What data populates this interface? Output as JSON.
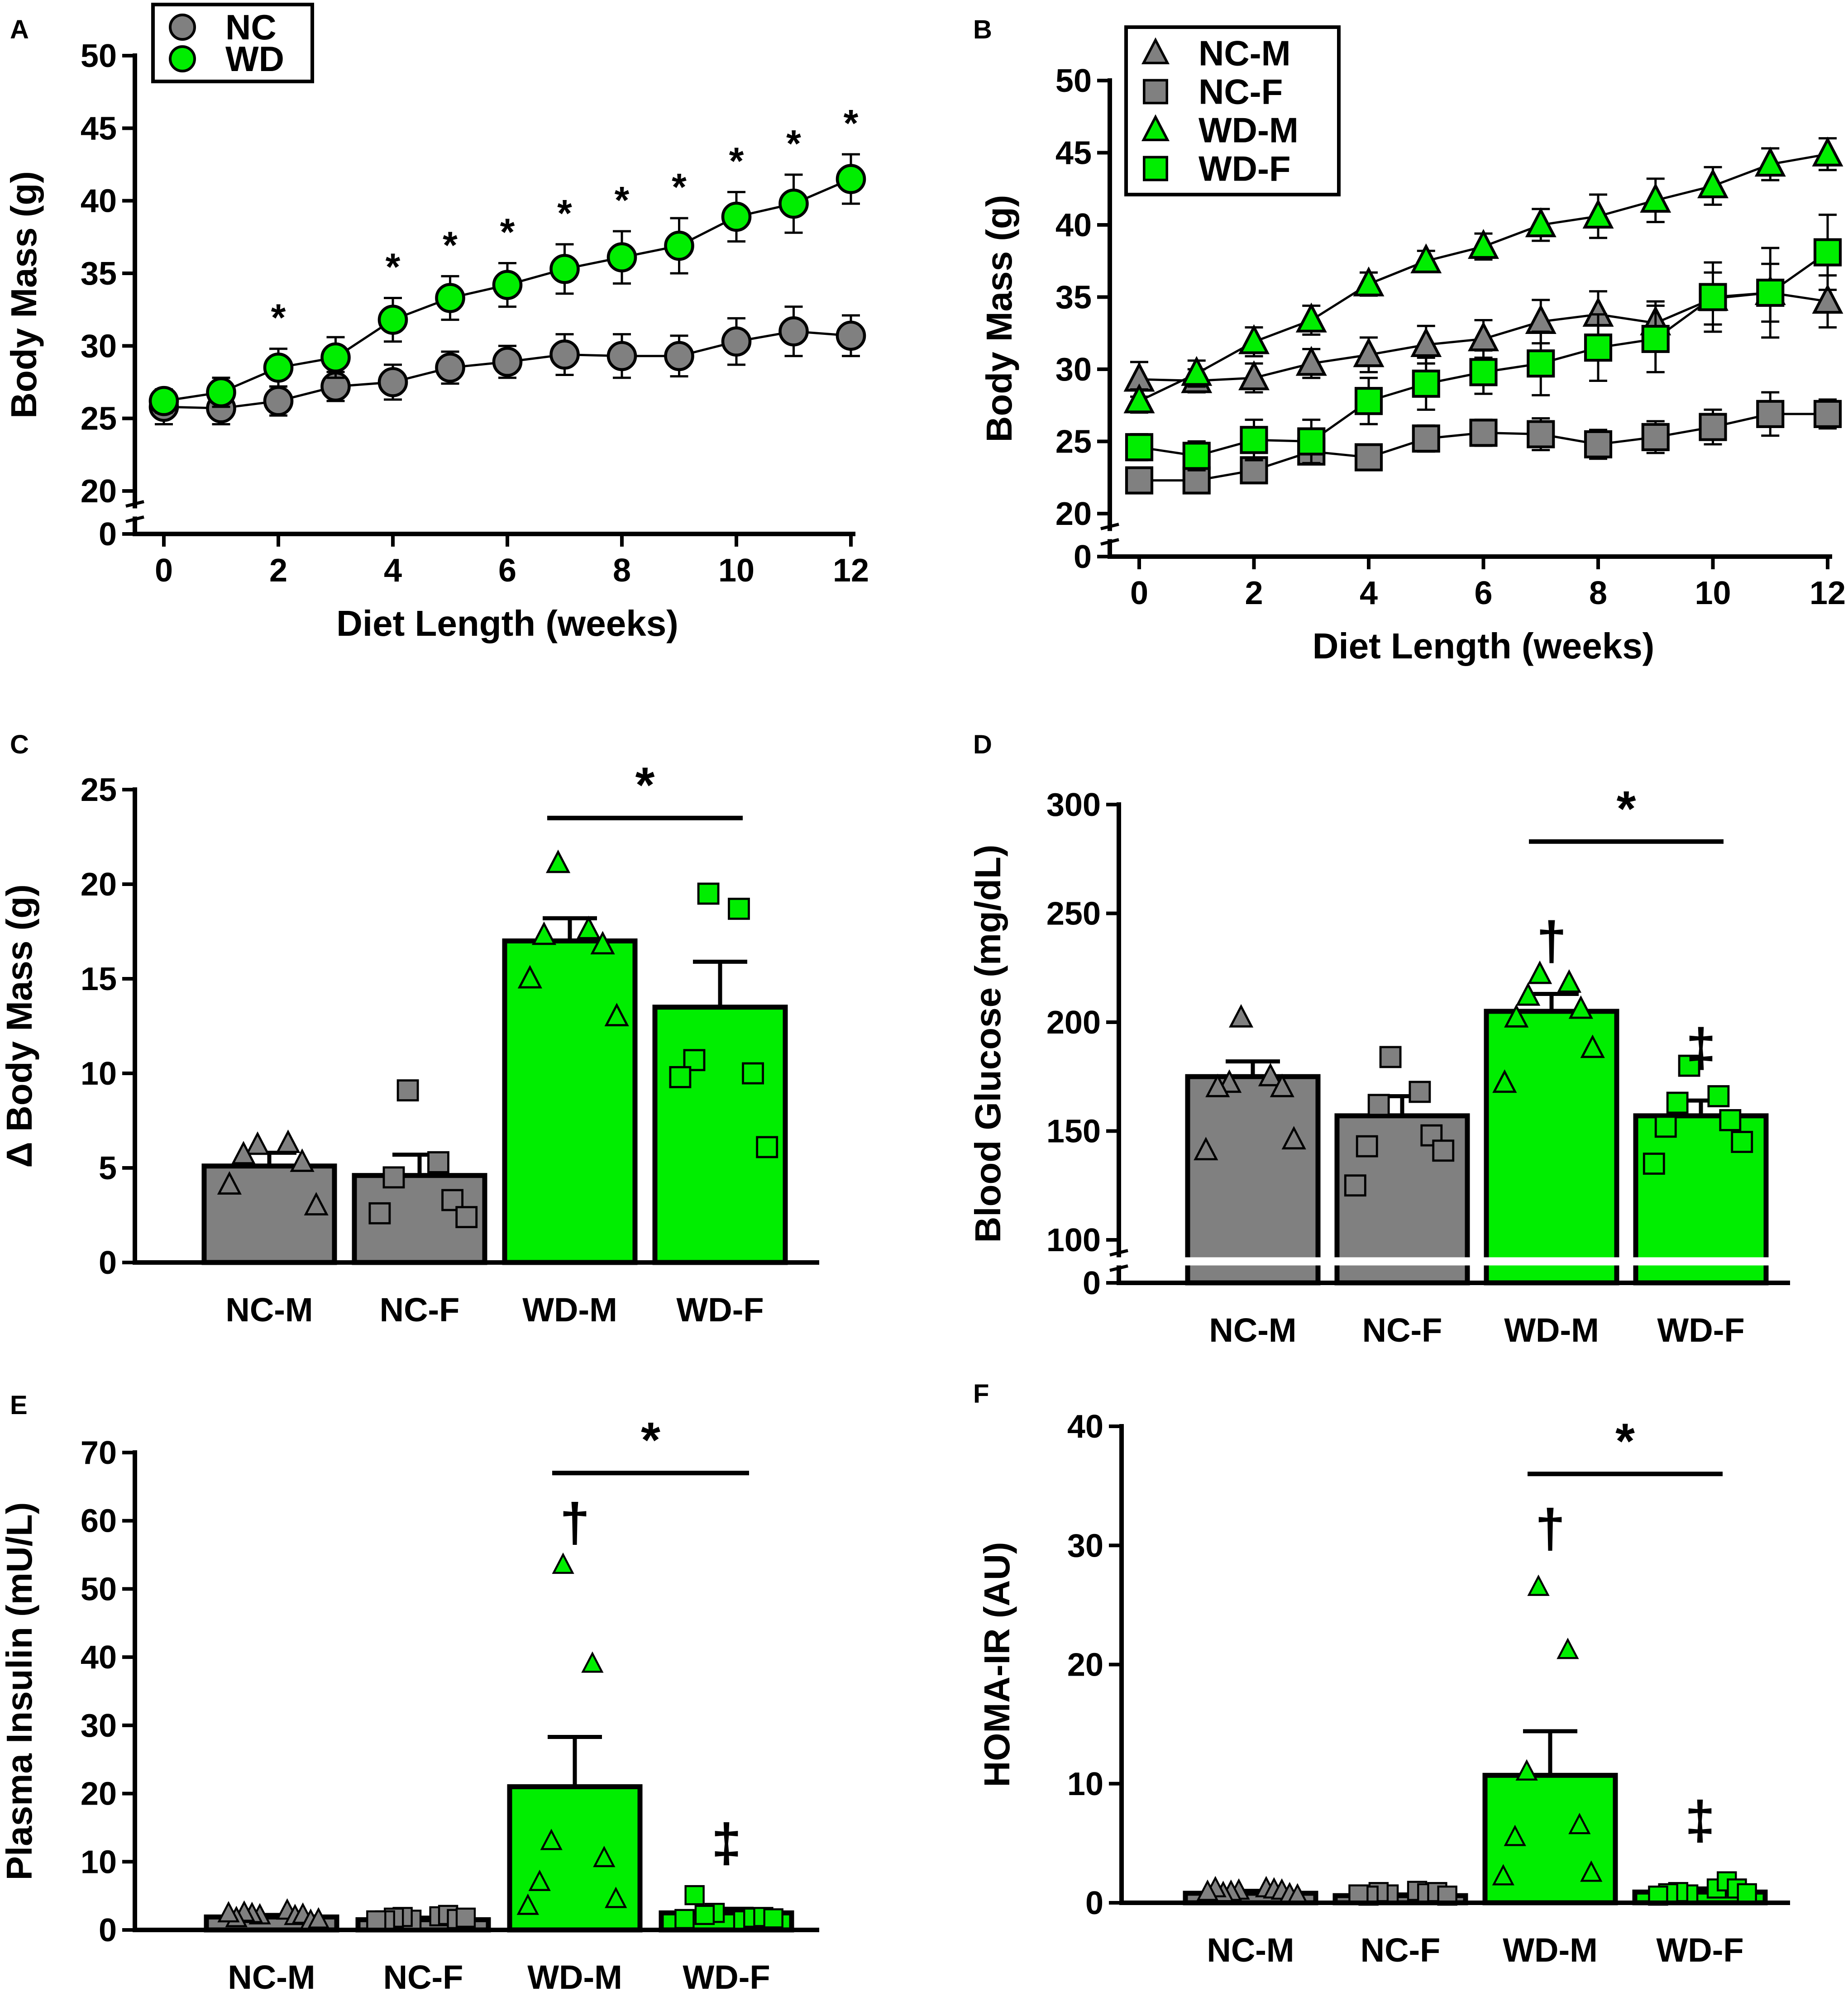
{
  "colors": {
    "nc": "#808080",
    "wd": "#00ee00",
    "axis": "#000000",
    "gap": "#ffffff"
  },
  "chart_data": [
    {
      "id": "A",
      "panel_label": "A",
      "type": "line",
      "xlabel": "Diet Length (weeks)",
      "ylabel": "Body Mass (g)",
      "xticks": [
        "0",
        "2",
        "4",
        "6",
        "8",
        "10",
        "12"
      ],
      "yticks_upper": [
        "20",
        "25",
        "30",
        "35",
        "40",
        "45",
        "50"
      ],
      "ytick_zero": "0",
      "axis_break_at": 20,
      "ylim_upper": [
        20,
        50
      ],
      "xlim": [
        0,
        12
      ],
      "legend": [
        {
          "name": "NC",
          "marker": "circle",
          "color": "#808080"
        },
        {
          "name": "WD",
          "marker": "circle",
          "color": "#00ee00"
        }
      ],
      "x": [
        0,
        1,
        2,
        3,
        4,
        5,
        6,
        7,
        8,
        9,
        10,
        11,
        12
      ],
      "series": [
        {
          "name": "NC",
          "marker": "circle",
          "color": "#808080",
          "values": [
            25.8,
            25.7,
            26.2,
            27.2,
            27.5,
            28.5,
            28.9,
            29.4,
            29.3,
            29.3,
            30.3,
            31.0,
            30.7
          ],
          "errors": [
            1.2,
            1.1,
            1.0,
            1.0,
            1.2,
            1.1,
            1.1,
            1.4,
            1.5,
            1.4,
            1.6,
            1.7,
            1.4
          ]
        },
        {
          "name": "WD",
          "marker": "circle",
          "color": "#00ee00",
          "values": [
            26.2,
            26.8,
            28.5,
            29.2,
            31.8,
            33.3,
            34.2,
            35.3,
            36.1,
            36.9,
            38.9,
            39.8,
            41.5
          ],
          "errors": [
            0.8,
            1.0,
            1.3,
            1.4,
            1.5,
            1.5,
            1.5,
            1.7,
            1.8,
            1.9,
            1.7,
            2.0,
            1.7
          ]
        }
      ],
      "significance_marker": "*",
      "significant_x": [
        2,
        4,
        5,
        6,
        7,
        8,
        9,
        10,
        11,
        12
      ]
    },
    {
      "id": "B",
      "panel_label": "B",
      "type": "line",
      "xlabel": "Diet Length (weeks)",
      "ylabel": "Body Mass (g)",
      "xticks": [
        "0",
        "2",
        "4",
        "6",
        "8",
        "10",
        "12"
      ],
      "yticks_upper": [
        "20",
        "25",
        "30",
        "35",
        "40",
        "45",
        "50"
      ],
      "ytick_zero": "0",
      "axis_break_at": 20,
      "ylim_upper": [
        20,
        50
      ],
      "xlim": [
        0,
        12
      ],
      "legend": [
        {
          "name": "NC-M",
          "marker": "triangle",
          "color": "#808080"
        },
        {
          "name": "NC-F",
          "marker": "square",
          "color": "#808080"
        },
        {
          "name": "WD-M",
          "marker": "triangle",
          "color": "#00ee00"
        },
        {
          "name": "WD-F",
          "marker": "square",
          "color": "#00ee00"
        }
      ],
      "x": [
        0,
        1,
        2,
        3,
        4,
        5,
        6,
        7,
        8,
        9,
        10,
        11,
        12
      ],
      "series": [
        {
          "name": "NC-M",
          "marker": "triangle",
          "color": "#808080",
          "values": [
            29.3,
            29.2,
            29.4,
            30.4,
            31.0,
            31.7,
            32.1,
            33.3,
            33.8,
            33.2,
            34.9,
            35.3,
            34.7
          ],
          "errors": [
            1.2,
            0.8,
            1.0,
            1.0,
            1.2,
            1.3,
            1.3,
            1.5,
            1.6,
            1.5,
            1.8,
            2.0,
            1.8
          ]
        },
        {
          "name": "NC-F",
          "marker": "square",
          "color": "#808080",
          "values": [
            22.3,
            22.3,
            23.0,
            24.3,
            23.9,
            25.2,
            25.6,
            25.5,
            24.8,
            25.3,
            26.0,
            26.9,
            26.9
          ],
          "errors": [
            0.5,
            0.6,
            0.7,
            0.8,
            0.8,
            0.9,
            0.9,
            1.1,
            1.0,
            1.1,
            1.2,
            1.5,
            1.0
          ]
        },
        {
          "name": "WD-M",
          "marker": "triangle",
          "color": "#00ee00",
          "values": [
            27.8,
            29.7,
            31.9,
            33.4,
            35.9,
            37.5,
            38.5,
            40.0,
            40.6,
            41.7,
            42.7,
            44.2,
            44.9
          ],
          "errors": [
            0.8,
            0.9,
            1.0,
            1.0,
            0.8,
            0.7,
            0.9,
            1.1,
            1.5,
            1.5,
            1.3,
            1.1,
            1.1
          ]
        },
        {
          "name": "WD-F",
          "marker": "square",
          "color": "#00ee00",
          "values": [
            24.6,
            24.0,
            25.1,
            25.0,
            27.8,
            29.0,
            29.8,
            30.4,
            31.5,
            32.1,
            35.0,
            35.3,
            38.1
          ],
          "errors": [
            0.9,
            1.0,
            1.4,
            1.5,
            1.6,
            1.8,
            1.5,
            2.2,
            2.3,
            2.3,
            2.4,
            3.1,
            2.6
          ]
        }
      ]
    },
    {
      "id": "C",
      "panel_label": "C",
      "type": "bar",
      "ylabel": "Δ Body Mass (g)",
      "categories": [
        "NC-M",
        "NC-F",
        "WD-M",
        "WD-F"
      ],
      "colors": [
        "#808080",
        "#808080",
        "#00ee00",
        "#00ee00"
      ],
      "markers": [
        "triangle",
        "square",
        "triangle",
        "square"
      ],
      "yticks": [
        "0",
        "5",
        "10",
        "15",
        "20",
        "25"
      ],
      "ylim": [
        0,
        25
      ],
      "values": [
        5.1,
        4.6,
        17.0,
        13.5
      ],
      "errors": [
        0.7,
        1.1,
        1.2,
        2.4
      ],
      "points": [
        [
          6.2,
          6.3,
          5.7,
          5.3,
          4.1,
          3.0
        ],
        [
          9.1,
          5.3,
          4.5,
          3.3,
          2.6,
          2.4
        ],
        [
          21.1,
          17.6,
          17.3,
          16.8,
          15.0,
          13.0
        ],
        [
          19.5,
          18.7,
          10.7,
          10.0,
          9.8,
          6.1
        ]
      ],
      "significance": {
        "from": 2,
        "to": 3,
        "label": "*",
        "y": 23.5
      },
      "symbols": []
    },
    {
      "id": "D",
      "panel_label": "D",
      "type": "bar",
      "ylabel": "Blood Glucose (mg/dL)",
      "categories": [
        "NC-M",
        "NC-F",
        "WD-M",
        "WD-F"
      ],
      "colors": [
        "#808080",
        "#808080",
        "#00ee00",
        "#00ee00"
      ],
      "markers": [
        "triangle",
        "square",
        "triangle",
        "square"
      ],
      "yticks_upper": [
        "100",
        "150",
        "200",
        "250",
        "300"
      ],
      "ytick_zero": "0",
      "axis_break_at": 100,
      "ylim_upper": [
        100,
        300
      ],
      "values": [
        175,
        157,
        205,
        157
      ],
      "errors": [
        7,
        9,
        8,
        7
      ],
      "points": [
        [
          202,
          175,
          172,
          170,
          170,
          146,
          141
        ],
        [
          184,
          168,
          162,
          148,
          143,
          141,
          125
        ],
        [
          222,
          218,
          212,
          206,
          202,
          188,
          172
        ],
        [
          180,
          166,
          163,
          155,
          152,
          145,
          135
        ]
      ],
      "significance": {
        "from": 2,
        "to": 3,
        "label": "*",
        "y": 283
      },
      "symbols": [
        {
          "index": 2,
          "label": "†",
          "y": 235
        },
        {
          "index": 3,
          "label": "‡",
          "y": 186
        }
      ]
    },
    {
      "id": "E",
      "panel_label": "E",
      "type": "bar",
      "ylabel": "Plasma Insulin (mU/L)",
      "categories": [
        "NC-M",
        "NC-F",
        "WD-M",
        "WD-F"
      ],
      "colors": [
        "#808080",
        "#808080",
        "#00ee00",
        "#00ee00"
      ],
      "markers": [
        "triangle",
        "square",
        "triangle",
        "square"
      ],
      "yticks": [
        "0",
        "10",
        "20",
        "30",
        "40",
        "50",
        "60",
        "70"
      ],
      "ylim": [
        0,
        70
      ],
      "values": [
        1.9,
        1.5,
        21.0,
        2.5
      ],
      "errors": [
        0.3,
        0.3,
        7.3,
        0.6
      ],
      "points": [
        [
          2.1,
          2.8,
          2.3,
          2.0,
          2.5,
          2.2,
          1.7,
          1.3,
          2.4,
          1.5
        ],
        [
          1.5,
          2.0,
          1.9,
          2.2,
          1.8,
          1.6,
          1.4,
          1.8,
          1.4
        ],
        [
          53.5,
          39.0,
          13.0,
          10.5,
          7.0,
          4.5,
          3.5
        ],
        [
          2.5,
          1.4,
          2.2,
          1.8,
          5.1,
          1.9,
          1.6,
          1.7
        ]
      ],
      "significance": {
        "from": 2,
        "to": 3,
        "label": "*",
        "y": 67
      },
      "symbols": [
        {
          "index": 2,
          "label": "†",
          "y": 59
        },
        {
          "index": 3,
          "label": "‡",
          "y": 12
        }
      ]
    },
    {
      "id": "F",
      "panel_label": "F",
      "type": "bar",
      "ylabel": "HOMA-IR (AU)",
      "categories": [
        "NC-M",
        "NC-F",
        "WD-M",
        "WD-F"
      ],
      "colors": [
        "#808080",
        "#808080",
        "#00ee00",
        "#00ee00"
      ],
      "markers": [
        "triangle",
        "square",
        "triangle",
        "square"
      ],
      "yticks": [
        "0",
        "10",
        "20",
        "30",
        "40"
      ],
      "ylim": [
        0,
        40
      ],
      "values": [
        0.8,
        0.6,
        10.7,
        0.9
      ],
      "errors": [
        0.2,
        0.1,
        3.7,
        0.3
      ],
      "points": [
        [
          1.0,
          1.2,
          0.9,
          1.1,
          0.8,
          1.0,
          1.2,
          0.7,
          0.9,
          0.6
        ],
        [
          0.7,
          1.0,
          0.9,
          0.8,
          0.6,
          0.9,
          0.7,
          0.6
        ],
        [
          26.5,
          21.2,
          11.0,
          6.5,
          5.5,
          2.5,
          2.2
        ],
        [
          0.7,
          1.2,
          0.9,
          1.8,
          0.8,
          1.2,
          0.6,
          0.8
        ]
      ],
      "significance": {
        "from": 2,
        "to": 3,
        "label": "*",
        "y": 36
      },
      "symbols": [
        {
          "index": 2,
          "label": "†",
          "y": 31
        },
        {
          "index": 3,
          "label": "‡",
          "y": 6.5
        }
      ]
    }
  ]
}
